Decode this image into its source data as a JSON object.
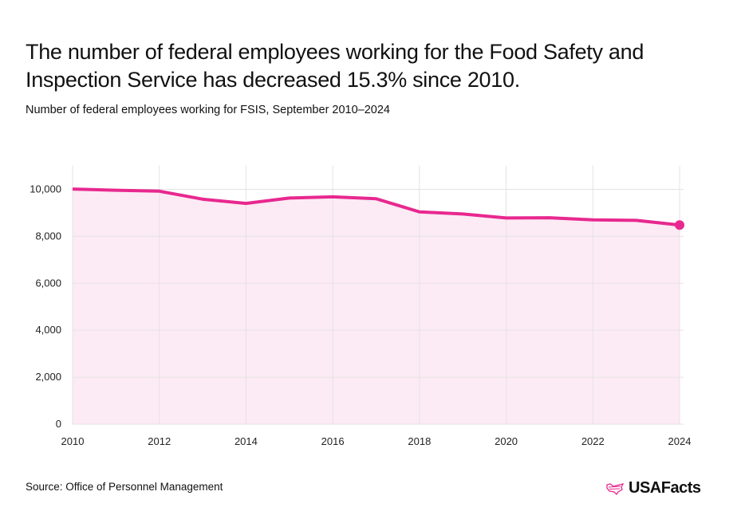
{
  "title": "The number of federal employees working for the Food Safety and Inspection Service has decreased 15.3% since 2010.",
  "subtitle": "Number of federal employees working for FSIS, September 2010–2024",
  "source": "Source: Office of Personnel Management",
  "logo_text": "USAFacts",
  "colors": {
    "line": "#e8288f",
    "fill": "#fcebf4",
    "grid": "#e6e2e4"
  },
  "chart_data": {
    "type": "area",
    "x": [
      2010,
      2011,
      2012,
      2013,
      2014,
      2015,
      2016,
      2017,
      2018,
      2019,
      2020,
      2021,
      2022,
      2023,
      2024
    ],
    "values": [
      10010,
      9960,
      9920,
      9580,
      9400,
      9630,
      9680,
      9600,
      9040,
      8950,
      8780,
      8790,
      8700,
      8680,
      8480
    ],
    "xlim": [
      2010,
      2024
    ],
    "ylim": [
      0,
      11000
    ],
    "xticks": [
      "2010",
      "2012",
      "2014",
      "2016",
      "2018",
      "2020",
      "2022",
      "2024"
    ],
    "yticks": [
      "0",
      "2,000",
      "4,000",
      "6,000",
      "8,000",
      "10,000"
    ],
    "grid": true,
    "xlabel": "",
    "ylabel": ""
  }
}
